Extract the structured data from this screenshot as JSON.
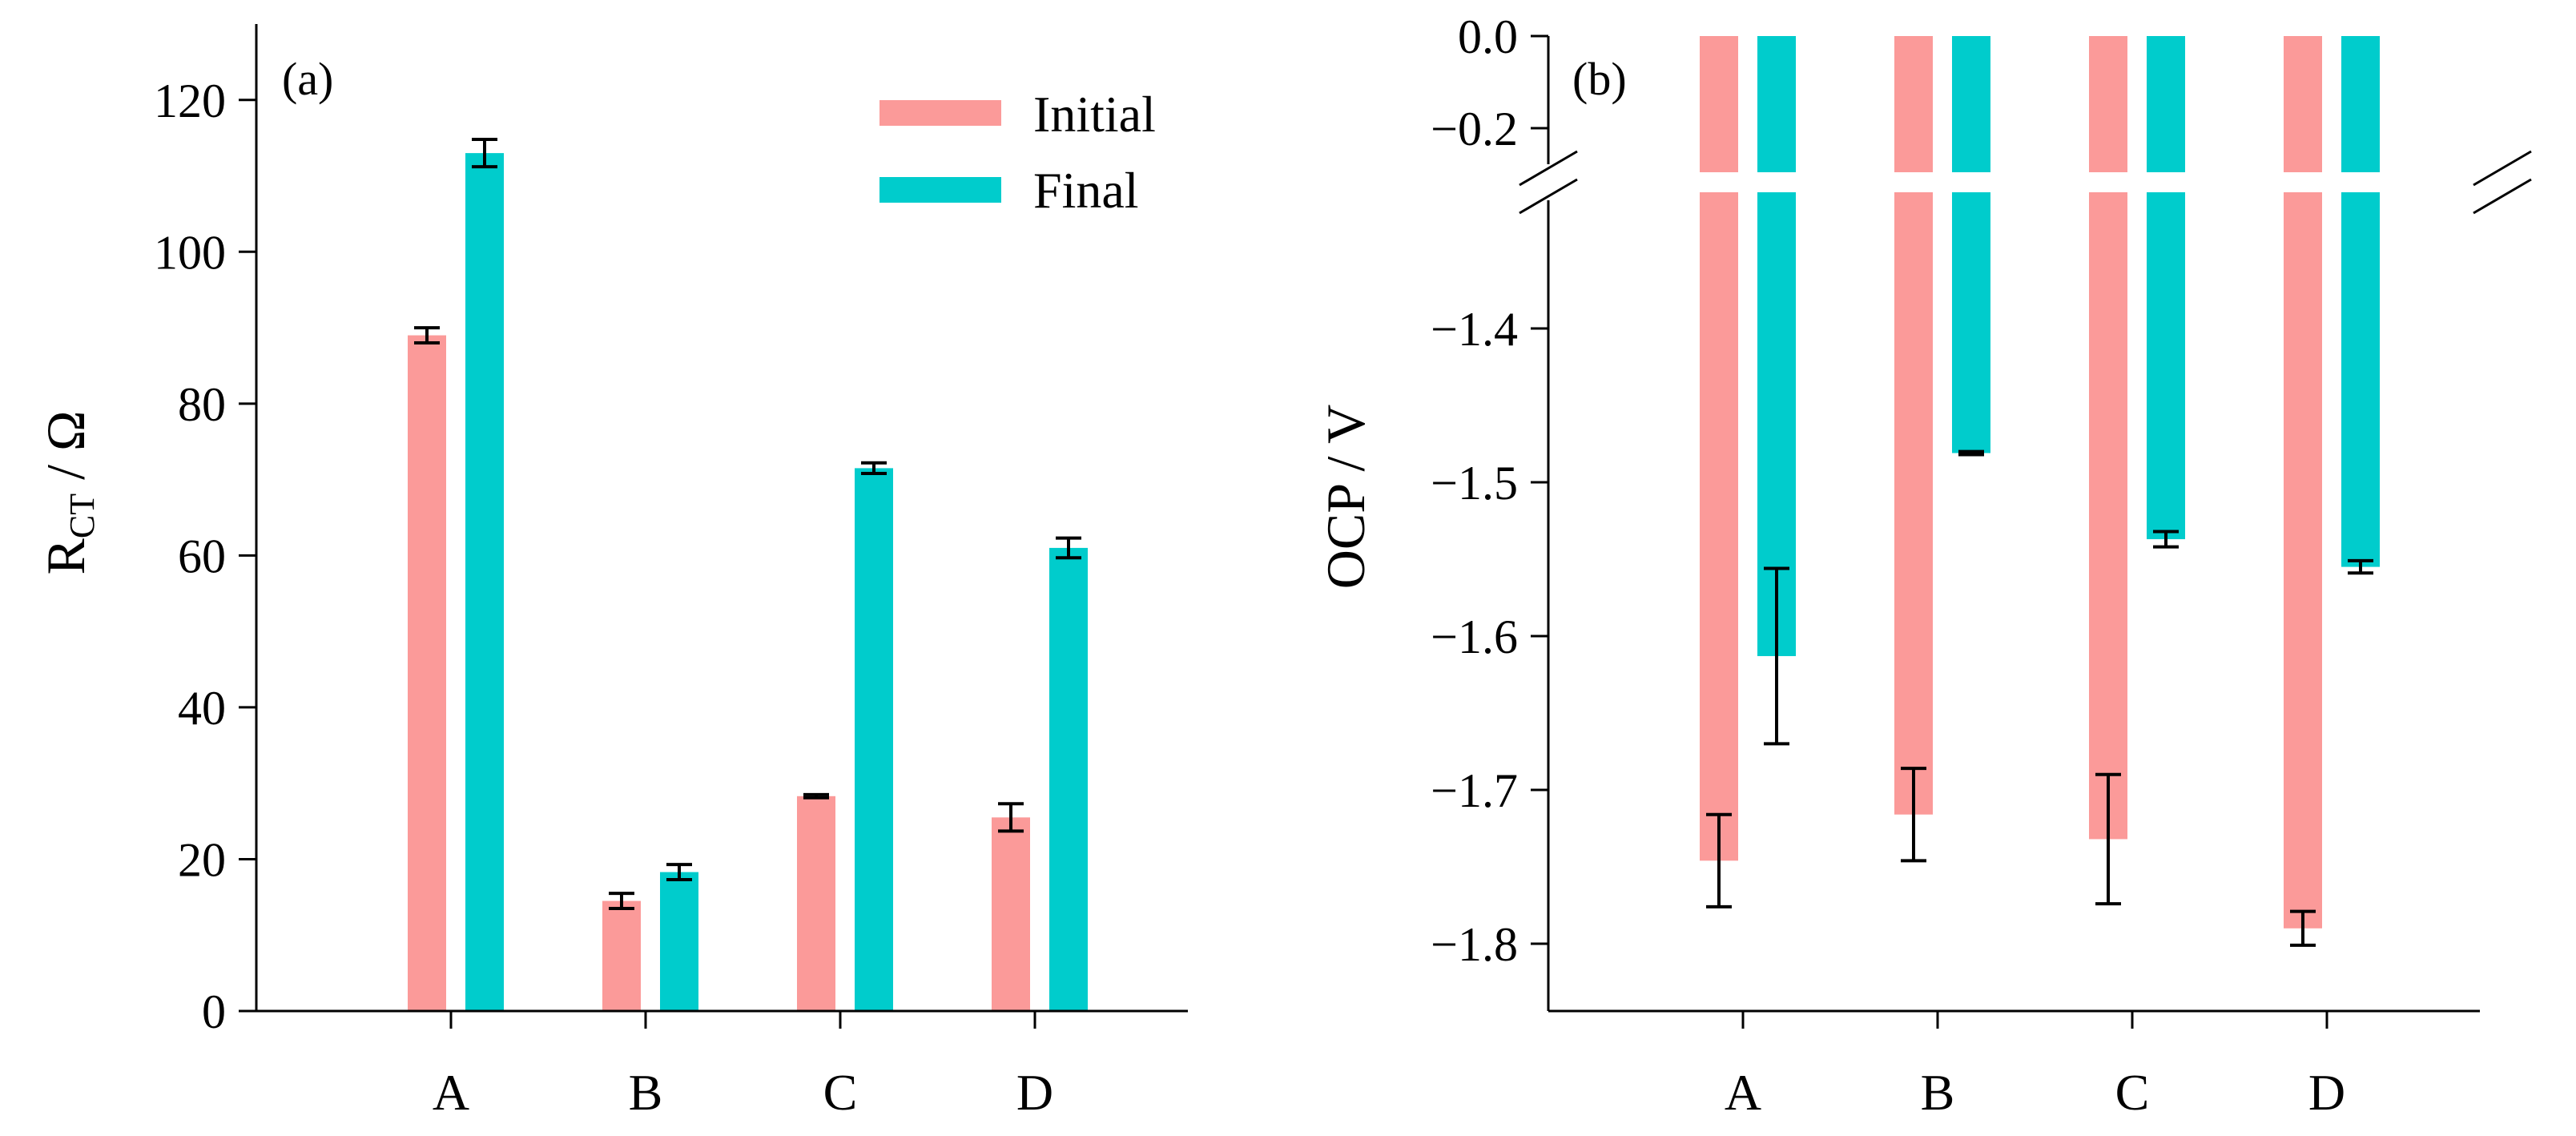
{
  "colors": {
    "initial": "#fb9a99",
    "final": "#00cccc",
    "axis": "#000000",
    "background": "#ffffff"
  },
  "chart_data": [
    {
      "type": "bar",
      "panel_label": "(a)",
      "title": "",
      "xlabel": "",
      "ylabel": "R",
      "ylabel_subscript": "CT",
      "ylabel_suffix": " / Ω",
      "ylim": [
        0,
        130
      ],
      "yticks": [
        0,
        20,
        40,
        60,
        80,
        100,
        120
      ],
      "ytick_labels": [
        "0",
        "20",
        "40",
        "60",
        "80",
        "100",
        "120"
      ],
      "categories": [
        "A",
        "B",
        "C",
        "D"
      ],
      "legend": {
        "position": "top-right",
        "entries": [
          "Initial",
          "Final"
        ]
      },
      "series": [
        {
          "name": "Initial",
          "values": [
            89,
            14.5,
            28.3,
            25.5
          ],
          "errors": [
            1.0,
            1.0,
            0.2,
            1.8
          ]
        },
        {
          "name": "Final",
          "values": [
            113,
            18.3,
            71.5,
            61
          ],
          "errors": [
            1.8,
            1.0,
            0.7,
            1.3
          ]
        }
      ]
    },
    {
      "type": "bar",
      "panel_label": "(b)",
      "title": "",
      "xlabel": "",
      "ylabel": "OCP / V",
      "ylim": [
        -1.85,
        0
      ],
      "axis_break": [
        -0.28,
        -1.3
      ],
      "yticks": [
        0,
        -0.2,
        -1.4,
        -1.5,
        -1.6,
        -1.7,
        -1.8
      ],
      "ytick_labels": [
        "0.0",
        "−0.2",
        "−1.4",
        "−1.5",
        "−1.6",
        "−1.7",
        "−1.8"
      ],
      "categories": [
        "A",
        "B",
        "C",
        "D"
      ],
      "series": [
        {
          "name": "Initial",
          "values": [
            -1.746,
            -1.716,
            -1.732,
            -1.79
          ],
          "errors": [
            0.03,
            0.03,
            0.042,
            0.011
          ]
        },
        {
          "name": "Final",
          "values": [
            -1.613,
            -1.481,
            -1.537,
            -1.555
          ],
          "errors": [
            0.057,
            0.001,
            0.005,
            0.004
          ]
        }
      ]
    }
  ]
}
